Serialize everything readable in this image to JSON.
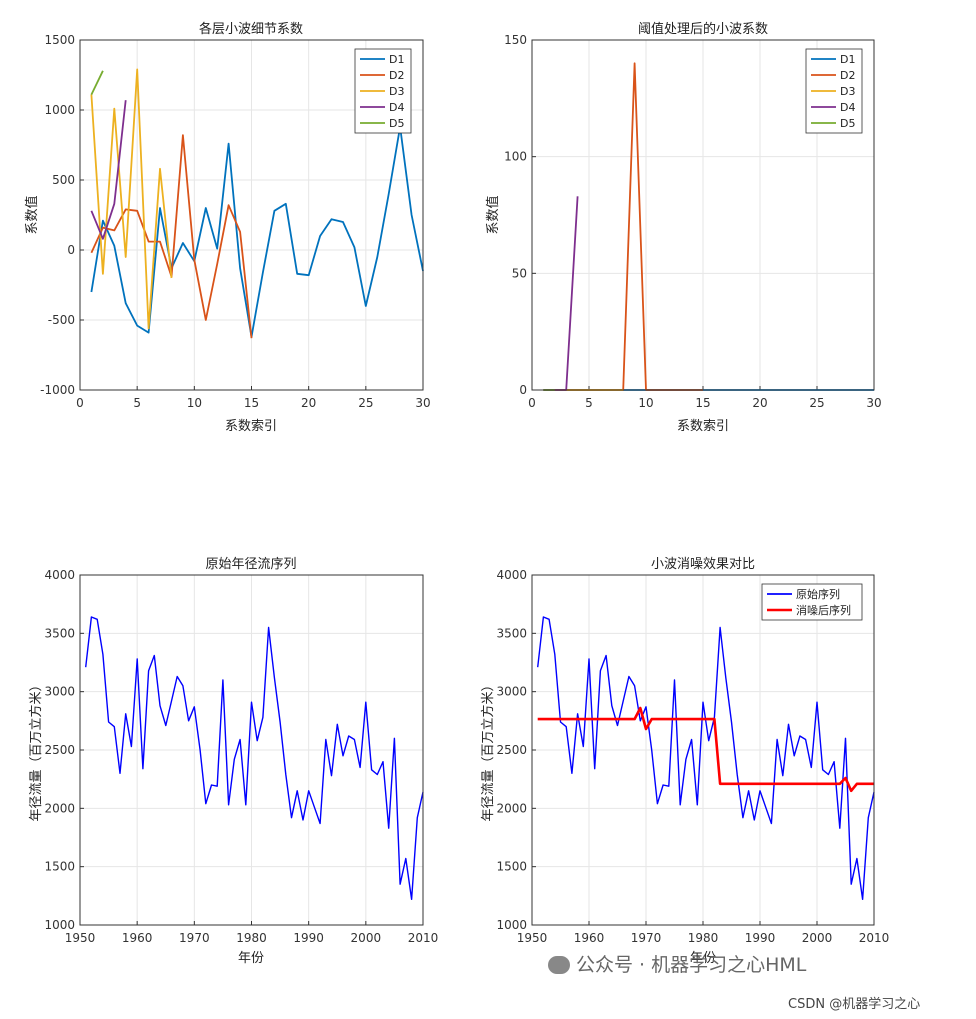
{
  "chart_data": [
    {
      "type": "line",
      "title": "各层小波细节系数",
      "xlabel": "系数索引",
      "ylabel": "系数值",
      "xlim": [
        0,
        30
      ],
      "ylim": [
        -1000,
        1500
      ],
      "xticks": [
        0,
        5,
        10,
        15,
        20,
        25,
        30
      ],
      "yticks": [
        -1000,
        -500,
        0,
        500,
        1000,
        1500
      ],
      "grid": true,
      "legend_position": "top-right",
      "series": [
        {
          "name": "D1",
          "color": "#0072BD",
          "x": [
            1,
            2,
            3,
            4,
            5,
            6,
            7,
            8,
            9,
            10,
            11,
            12,
            13,
            14,
            15,
            16,
            17,
            18,
            19,
            20,
            21,
            22,
            23,
            24,
            25,
            26,
            27,
            28,
            29,
            30
          ],
          "y": [
            -300,
            210,
            30,
            -380,
            -540,
            -590,
            300,
            -130,
            50,
            -80,
            300,
            10,
            760,
            -130,
            -620,
            -160,
            280,
            330,
            -170,
            -180,
            100,
            220,
            200,
            20,
            -400,
            -50,
            400,
            880,
            250,
            -150
          ]
        },
        {
          "name": "D2",
          "color": "#D95319",
          "x": [
            1,
            2,
            3,
            4,
            5,
            6,
            7,
            8,
            9,
            10,
            11,
            12,
            13,
            14,
            15
          ],
          "y": [
            -20,
            160,
            140,
            290,
            280,
            60,
            60,
            -190,
            820,
            -70,
            -500,
            -100,
            320,
            130,
            -630
          ]
        },
        {
          "name": "D3",
          "color": "#EDB120",
          "x": [
            1,
            2,
            3,
            4,
            5,
            6,
            7,
            8
          ],
          "y": [
            1110,
            -170,
            1010,
            -50,
            1290,
            -560,
            580,
            -200
          ]
        },
        {
          "name": "D4",
          "color": "#7E2F8E",
          "x": [
            1,
            2,
            3,
            4
          ],
          "y": [
            280,
            80,
            330,
            1070
          ]
        },
        {
          "name": "D5",
          "color": "#77AC30",
          "x": [
            1,
            2
          ],
          "y": [
            1110,
            1280
          ]
        }
      ]
    },
    {
      "type": "line",
      "title": "阈值处理后的小波系数",
      "xlabel": "系数索引",
      "ylabel": "系数值",
      "xlim": [
        0,
        30
      ],
      "ylim": [
        0,
        150
      ],
      "xticks": [
        0,
        5,
        10,
        15,
        20,
        25,
        30
      ],
      "yticks": [
        0,
        50,
        100,
        150
      ],
      "grid": true,
      "legend_position": "top-right",
      "series": [
        {
          "name": "D1",
          "color": "#0072BD",
          "x": [
            1,
            2,
            3,
            4,
            5,
            6,
            7,
            8,
            9,
            10,
            11,
            12,
            13,
            14,
            15,
            16,
            17,
            18,
            19,
            20,
            21,
            22,
            23,
            24,
            25,
            26,
            27,
            28,
            29,
            30
          ],
          "y": [
            0,
            0,
            0,
            0,
            0,
            0,
            0,
            0,
            0,
            0,
            0,
            0,
            0,
            0,
            0,
            0,
            0,
            0,
            0,
            0,
            0,
            0,
            0,
            0,
            0,
            0,
            0,
            0,
            0,
            0
          ]
        },
        {
          "name": "D2",
          "color": "#D95319",
          "x": [
            1,
            2,
            3,
            4,
            5,
            6,
            7,
            8,
            9,
            10,
            11,
            12,
            13,
            14,
            15
          ],
          "y": [
            0,
            0,
            0,
            0,
            0,
            0,
            0,
            0,
            140,
            0,
            0,
            0,
            0,
            0,
            0
          ]
        },
        {
          "name": "D3",
          "color": "#EDB120",
          "x": [
            1,
            2,
            3,
            4,
            5,
            6,
            7,
            8
          ],
          "y": [
            0,
            0,
            0,
            0,
            0,
            0,
            0,
            0
          ]
        },
        {
          "name": "D4",
          "color": "#7E2F8E",
          "x": [
            1,
            2,
            3,
            4
          ],
          "y": [
            0,
            0,
            0,
            83
          ]
        },
        {
          "name": "D5",
          "color": "#77AC30",
          "x": [
            1,
            2
          ],
          "y": [
            0,
            0
          ]
        }
      ]
    },
    {
      "type": "line",
      "title": "原始年径流序列",
      "xlabel": "年份",
      "ylabel": "年径流量（百万立方米）",
      "xlim": [
        1950,
        2010
      ],
      "ylim": [
        1000,
        4000
      ],
      "xticks": [
        1950,
        1960,
        1970,
        1980,
        1990,
        2000,
        2010
      ],
      "yticks": [
        1000,
        1500,
        2000,
        2500,
        3000,
        3500,
        4000
      ],
      "grid": true,
      "series": [
        {
          "name": "",
          "color": "#0000FF",
          "x": [
            1951,
            1952,
            1953,
            1954,
            1955,
            1956,
            1957,
            1958,
            1959,
            1960,
            1961,
            1962,
            1963,
            1964,
            1965,
            1966,
            1967,
            1968,
            1969,
            1970,
            1971,
            1972,
            1973,
            1974,
            1975,
            1976,
            1977,
            1978,
            1979,
            1980,
            1981,
            1982,
            1983,
            1984,
            1985,
            1986,
            1987,
            1988,
            1989,
            1990,
            1991,
            1992,
            1993,
            1994,
            1995,
            1996,
            1997,
            1998,
            1999,
            2000,
            2001,
            2002,
            2003,
            2004,
            2005,
            2006,
            2007,
            2008,
            2009,
            2010
          ],
          "y": [
            3210,
            3640,
            3620,
            3320,
            2740,
            2700,
            2300,
            2810,
            2530,
            3280,
            2340,
            3180,
            3310,
            2880,
            2710,
            2920,
            3130,
            3050,
            2750,
            2870,
            2500,
            2040,
            2200,
            2190,
            3100,
            2030,
            2420,
            2590,
            2030,
            2910,
            2580,
            2780,
            3550,
            3120,
            2740,
            2290,
            1920,
            2150,
            1900,
            2150,
            2010,
            1870,
            2590,
            2280,
            2720,
            2450,
            2620,
            2590,
            2350,
            2910,
            2330,
            2290,
            2400,
            1830,
            2600,
            1350,
            1570,
            1220,
            1920,
            2140
          ]
        }
      ]
    },
    {
      "type": "line",
      "title": "小波消噪效果对比",
      "xlabel": "年份",
      "ylabel": "年径流量（百万立方米）",
      "xlim": [
        1950,
        2010
      ],
      "ylim": [
        1000,
        4000
      ],
      "xticks": [
        1950,
        1960,
        1970,
        1980,
        1990,
        2000,
        2010
      ],
      "yticks": [
        1000,
        1500,
        2000,
        2500,
        3000,
        3500,
        4000
      ],
      "grid": true,
      "legend_position": "top-right",
      "series": [
        {
          "name": "原始序列",
          "color": "#0000FF",
          "x": [
            1951,
            1952,
            1953,
            1954,
            1955,
            1956,
            1957,
            1958,
            1959,
            1960,
            1961,
            1962,
            1963,
            1964,
            1965,
            1966,
            1967,
            1968,
            1969,
            1970,
            1971,
            1972,
            1973,
            1974,
            1975,
            1976,
            1977,
            1978,
            1979,
            1980,
            1981,
            1982,
            1983,
            1984,
            1985,
            1986,
            1987,
            1988,
            1989,
            1990,
            1991,
            1992,
            1993,
            1994,
            1995,
            1996,
            1997,
            1998,
            1999,
            2000,
            2001,
            2002,
            2003,
            2004,
            2005,
            2006,
            2007,
            2008,
            2009,
            2010
          ],
          "y": [
            3210,
            3640,
            3620,
            3320,
            2740,
            2700,
            2300,
            2810,
            2530,
            3280,
            2340,
            3180,
            3310,
            2880,
            2710,
            2920,
            3130,
            3050,
            2750,
            2870,
            2500,
            2040,
            2200,
            2190,
            3100,
            2030,
            2420,
            2590,
            2030,
            2910,
            2580,
            2780,
            3550,
            3120,
            2740,
            2290,
            1920,
            2150,
            1900,
            2150,
            2010,
            1870,
            2590,
            2280,
            2720,
            2450,
            2620,
            2590,
            2350,
            2910,
            2330,
            2290,
            2400,
            1830,
            2600,
            1350,
            1570,
            1220,
            1920,
            2140
          ]
        },
        {
          "name": "消噪后序列",
          "color": "#FF0000",
          "x": [
            1951,
            1952,
            1953,
            1954,
            1955,
            1956,
            1957,
            1958,
            1959,
            1960,
            1961,
            1962,
            1963,
            1964,
            1965,
            1966,
            1967,
            1968,
            1969,
            1970,
            1971,
            1972,
            1973,
            1974,
            1975,
            1976,
            1977,
            1978,
            1979,
            1980,
            1981,
            1982,
            1983,
            1984,
            1985,
            1986,
            1987,
            1988,
            1989,
            1990,
            1991,
            1992,
            1993,
            1994,
            1995,
            1996,
            1997,
            1998,
            1999,
            2000,
            2001,
            2002,
            2003,
            2004,
            2005,
            2006,
            2007,
            2008,
            2009,
            2010
          ],
          "y": [
            2765,
            2765,
            2765,
            2765,
            2765,
            2765,
            2765,
            2765,
            2765,
            2765,
            2765,
            2765,
            2765,
            2765,
            2765,
            2765,
            2765,
            2765,
            2860,
            2680,
            2765,
            2765,
            2765,
            2765,
            2765,
            2765,
            2765,
            2765,
            2765,
            2765,
            2765,
            2765,
            2210,
            2210,
            2210,
            2210,
            2210,
            2210,
            2210,
            2210,
            2210,
            2210,
            2210,
            2210,
            2210,
            2210,
            2210,
            2210,
            2210,
            2210,
            2210,
            2210,
            2210,
            2210,
            2260,
            2150,
            2210,
            2210,
            2210,
            2210
          ]
        }
      ]
    }
  ],
  "watermark": {
    "text": "公众号 · 机器学习之心HML"
  },
  "credit": {
    "text": "CSDN @机器学习之心"
  }
}
